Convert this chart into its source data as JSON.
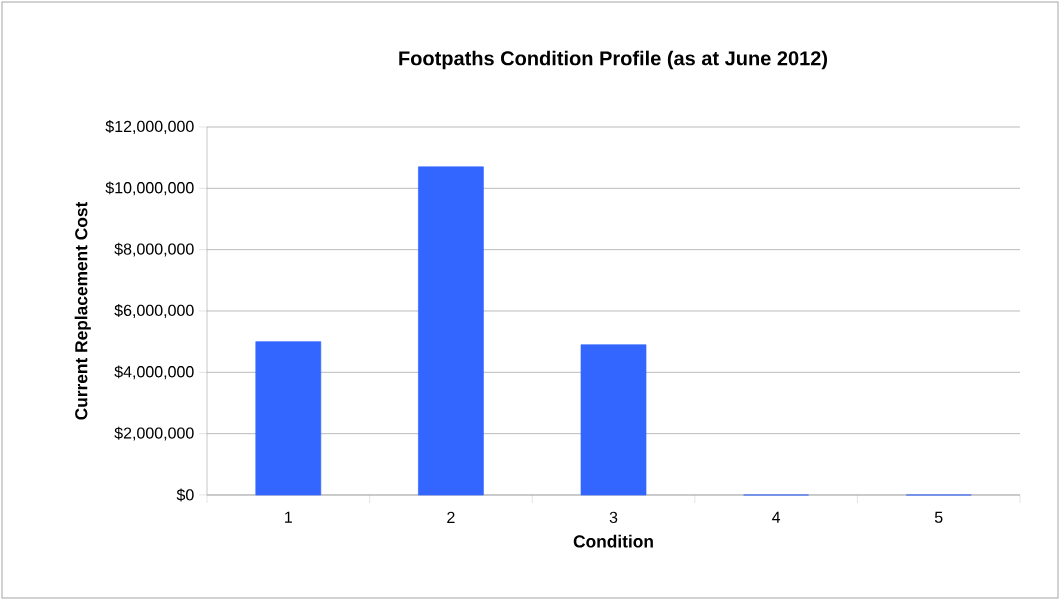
{
  "chart_data": {
    "type": "bar",
    "title": "Footpaths Condition Profile (as at June 2012)",
    "xlabel": "Condition",
    "ylabel": "Current Replacement Cost",
    "categories": [
      "1",
      "2",
      "3",
      "4",
      "5"
    ],
    "values": [
      5000000,
      10700000,
      4900000,
      0,
      0
    ],
    "color": "#3366ff",
    "ylim": [
      0,
      12000000
    ],
    "yticks": [
      {
        "value": 0,
        "label": "$0"
      },
      {
        "value": 2000000,
        "label": "$2,000,000"
      },
      {
        "value": 4000000,
        "label": "$4,000,000"
      },
      {
        "value": 6000000,
        "label": "$6,000,000"
      },
      {
        "value": 8000000,
        "label": "$8,000,000"
      },
      {
        "value": 10000000,
        "label": "$10,000,000"
      },
      {
        "value": 12000000,
        "label": "$12,000,000"
      }
    ],
    "grid": "y"
  }
}
